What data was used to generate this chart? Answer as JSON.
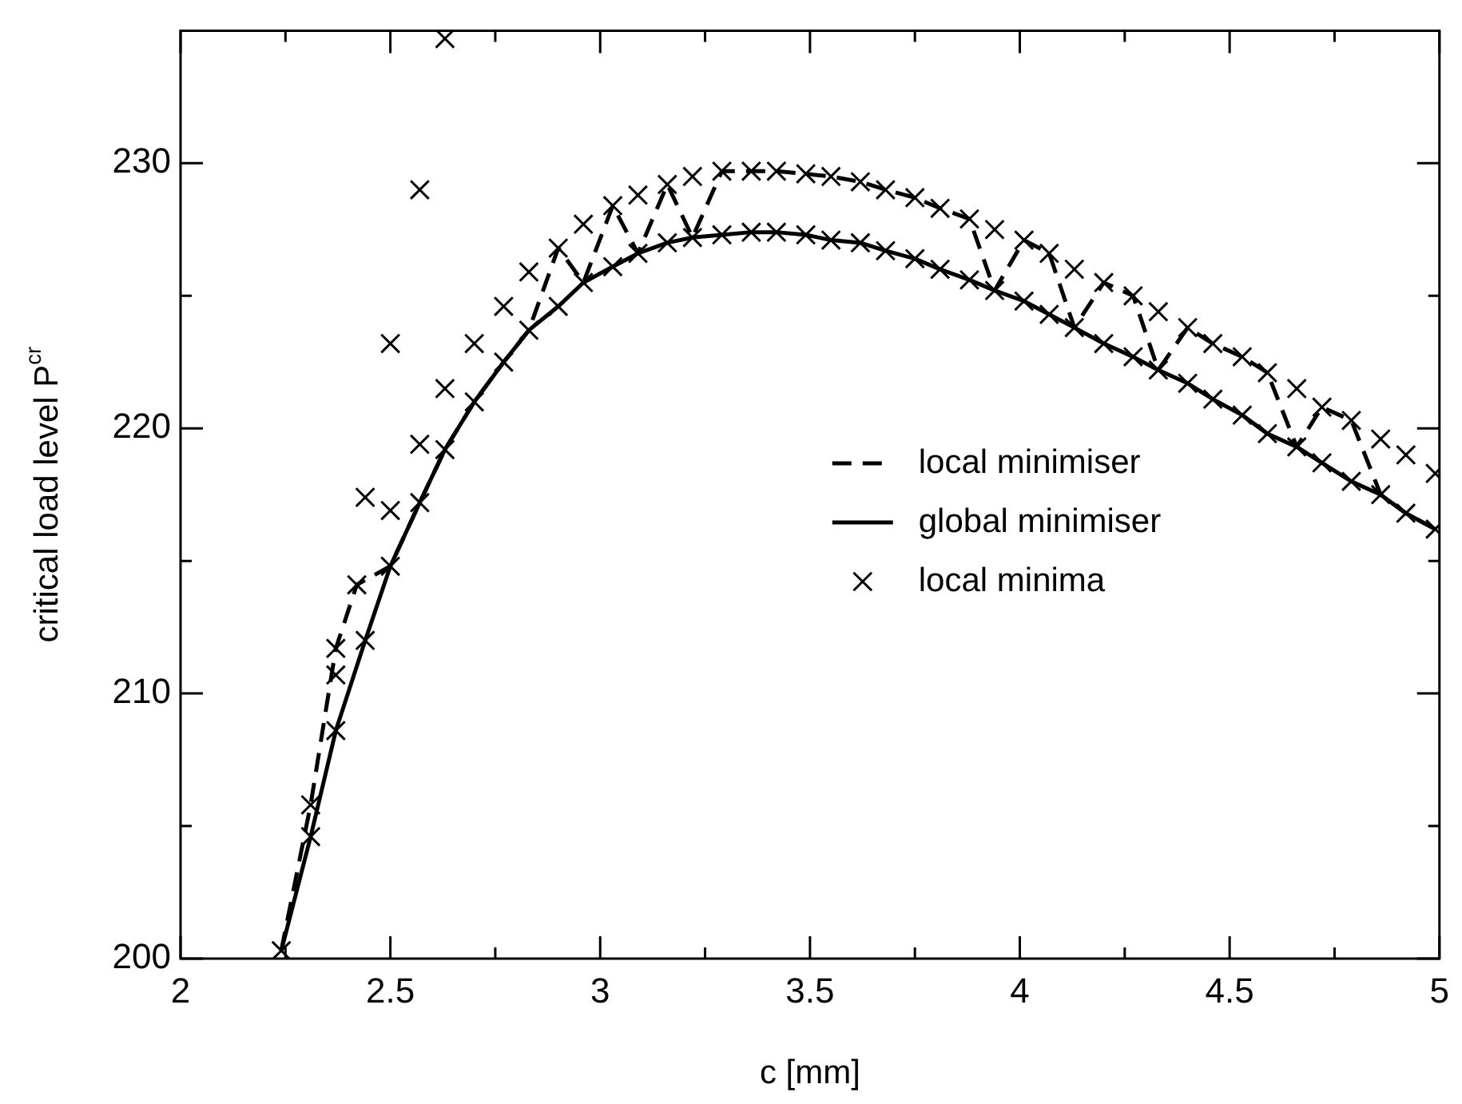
{
  "chart_data": {
    "type": "line",
    "xlabel": "c [mm]",
    "ylabel": "critical load level P$^{cr}$",
    "xlim": [
      2,
      5
    ],
    "ylim": [
      200,
      235
    ],
    "xticks": [
      2,
      {
        "value": 2.25,
        "label": null
      },
      2.5,
      {
        "value": 2.75,
        "label": null
      },
      3,
      {
        "value": 3.25,
        "label": null
      },
      3.5,
      {
        "value": 3.75,
        "label": null
      },
      4,
      {
        "value": 4.25,
        "label": null
      },
      4.5,
      {
        "value": 4.75,
        "label": null
      },
      5
    ],
    "yticks": [
      200,
      {
        "value": 205,
        "label": null
      },
      210,
      {
        "value": 215,
        "label": null
      },
      220,
      {
        "value": 225,
        "label": null
      },
      230
    ],
    "grid": false,
    "legend": "bottom right",
    "series": [
      {
        "name": "local minimiser",
        "line_style": "dashed",
        "marker": "none",
        "color": "#000000",
        "x": [
          2.24,
          2.31,
          2.37,
          2.42,
          2.5,
          2.57,
          2.63,
          2.7,
          2.77,
          2.83,
          2.9,
          2.96,
          3.03,
          3.09,
          3.16,
          3.22,
          3.29,
          3.36,
          3.42,
          3.49,
          3.55,
          3.62,
          3.68,
          3.75,
          3.81,
          3.88,
          3.94,
          4.01,
          4.07,
          4.13,
          4.2,
          4.27,
          4.33,
          4.4,
          4.46,
          4.53,
          4.59,
          4.66,
          4.72,
          4.79,
          4.86,
          4.92,
          4.99
        ],
        "values": [
          200.3,
          205.8,
          211.7,
          214.1,
          214.8,
          217.2,
          219.2,
          221.0,
          222.5,
          223.7,
          226.8,
          225.5,
          228.4,
          226.6,
          229.2,
          227.2,
          229.7,
          229.7,
          229.7,
          229.6,
          229.5,
          229.3,
          229.0,
          228.7,
          228.3,
          227.9,
          225.2,
          227.1,
          226.6,
          223.8,
          225.5,
          225.0,
          222.2,
          223.8,
          223.2,
          222.7,
          222.1,
          219.3,
          220.8,
          220.3,
          217.5,
          216.8,
          216.2
        ]
      },
      {
        "name": "global minimiser",
        "line_style": "solid",
        "marker": "none",
        "color": "#000000",
        "x": [
          2.24,
          2.31,
          2.37,
          2.44,
          2.5,
          2.57,
          2.63,
          2.7,
          2.77,
          2.83,
          2.9,
          2.96,
          3.03,
          3.09,
          3.16,
          3.22,
          3.29,
          3.36,
          3.42,
          3.49,
          3.55,
          3.62,
          3.68,
          3.75,
          3.81,
          3.88,
          3.94,
          4.01,
          4.07,
          4.13,
          4.2,
          4.27,
          4.33,
          4.4,
          4.46,
          4.53,
          4.59,
          4.66,
          4.72,
          4.79,
          4.86,
          4.92,
          4.99
        ],
        "values": [
          200.3,
          204.6,
          208.6,
          212.0,
          214.8,
          217.2,
          219.2,
          221.0,
          222.5,
          223.7,
          224.6,
          225.5,
          226.1,
          226.6,
          227.0,
          227.2,
          227.3,
          227.4,
          227.4,
          227.3,
          227.1,
          227.0,
          226.7,
          226.4,
          226.0,
          225.6,
          225.2,
          224.8,
          224.3,
          223.8,
          223.2,
          222.7,
          222.2,
          221.7,
          221.1,
          220.5,
          219.8,
          219.3,
          218.7,
          218.0,
          217.5,
          216.8,
          216.2
        ]
      },
      {
        "name": "local minima",
        "type": "scatter",
        "marker": "cross",
        "color": "#000000",
        "x": [
          2.24,
          2.31,
          2.37,
          2.44,
          2.5,
          2.57,
          2.63,
          2.7,
          2.77,
          2.83,
          2.9,
          2.96,
          3.03,
          3.09,
          3.16,
          3.22,
          3.29,
          3.36,
          3.42,
          3.49,
          3.55,
          3.62,
          3.68,
          3.75,
          3.81,
          3.88,
          3.94,
          4.01,
          4.07,
          4.13,
          4.2,
          4.27,
          4.33,
          4.4,
          4.46,
          4.53,
          4.59,
          4.66,
          4.72,
          4.79,
          4.86,
          4.92,
          4.99,
          2.31,
          2.37,
          2.37,
          2.42,
          2.44,
          2.5,
          2.5,
          2.57,
          2.57,
          2.63,
          2.63,
          2.7,
          2.77,
          2.83,
          2.9,
          2.96,
          3.03,
          3.09,
          3.16,
          3.22,
          3.29,
          3.36,
          3.42,
          3.49,
          3.55,
          3.62,
          3.68,
          3.75,
          3.81,
          3.88,
          3.94,
          4.01,
          4.07,
          4.13,
          4.2,
          4.27,
          4.33,
          4.4,
          4.46,
          4.53,
          4.59,
          4.66,
          4.72,
          4.79,
          4.86,
          4.92,
          4.99
        ],
        "values": [
          200.3,
          204.6,
          208.6,
          212.0,
          214.8,
          217.2,
          219.2,
          221.0,
          222.5,
          223.7,
          224.6,
          225.5,
          226.1,
          226.6,
          227.0,
          227.2,
          227.3,
          227.4,
          227.4,
          227.3,
          227.1,
          227.0,
          226.7,
          226.4,
          226.0,
          225.6,
          225.2,
          224.8,
          224.3,
          223.8,
          223.2,
          222.7,
          222.2,
          221.7,
          221.1,
          220.5,
          219.8,
          219.3,
          218.7,
          218.0,
          217.5,
          216.8,
          216.2,
          205.8,
          211.7,
          210.7,
          214.1,
          217.4,
          216.9,
          223.2,
          219.4,
          229.0,
          221.5,
          234.7,
          223.2,
          224.6,
          225.9,
          226.8,
          227.7,
          228.4,
          228.8,
          229.2,
          229.5,
          229.7,
          229.7,
          229.7,
          229.6,
          229.5,
          229.3,
          229.0,
          228.7,
          228.3,
          227.9,
          227.5,
          227.1,
          226.6,
          226.0,
          225.5,
          225.0,
          224.4,
          223.8,
          223.2,
          222.7,
          222.1,
          221.5,
          220.8,
          220.3,
          219.6,
          219.0,
          218.3
        ]
      }
    ]
  }
}
